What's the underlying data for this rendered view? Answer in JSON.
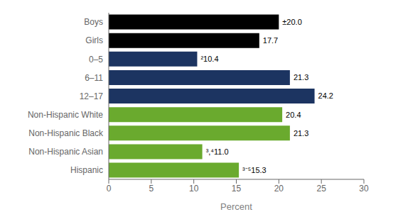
{
  "chart_data": {
    "type": "bar",
    "orientation": "horizontal",
    "categories": [
      "Boys",
      "Girls",
      "0–5",
      "6–11",
      "12–17",
      "Non-Hispanic White",
      "Non-Hispanic Black",
      "Non-Hispanic Asian",
      "Hispanic"
    ],
    "values": [
      20.0,
      17.7,
      10.4,
      21.3,
      24.2,
      20.4,
      21.3,
      11.0,
      15.3
    ],
    "value_labels": [
      "±20.0",
      "17.7",
      "²10.4",
      "21.3",
      "24.2",
      "20.4",
      "21.3",
      "³,⁴11.0",
      "³⁻⁵15.3"
    ],
    "colors": [
      "#000000",
      "#000000",
      "#1c3461",
      "#1c3461",
      "#1c3461",
      "#6aaa2e",
      "#6aaa2e",
      "#6aaa2e",
      "#6aaa2e"
    ],
    "data_labels": true,
    "xlabel": "Percent",
    "xlim": [
      0,
      30
    ],
    "xticks": [
      0,
      5,
      10,
      15,
      20,
      25,
      30
    ],
    "grid": false
  }
}
